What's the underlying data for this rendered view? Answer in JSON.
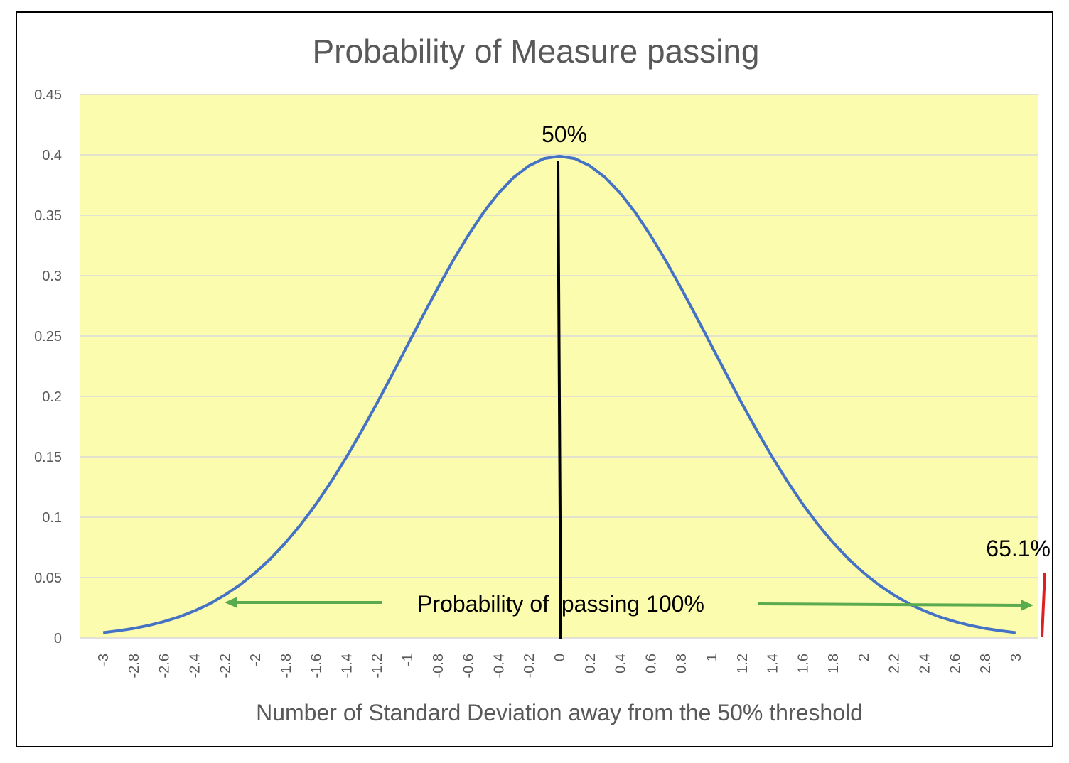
{
  "chart_data": {
    "type": "line",
    "title": "Probability of Measure passing",
    "xlabel": "Number of Standard Deviation away from the 50% threshold",
    "ylabel": "",
    "ylim": [
      0,
      0.45
    ],
    "y_ticks": [
      "0",
      "0.05",
      "0.1",
      "0.15",
      "0.2",
      "0.25",
      "0.3",
      "0.35",
      "0.4",
      "0.45"
    ],
    "x_ticks": [
      "-3",
      "-2.8",
      "-2.6",
      "-2.4",
      "-2.2",
      "-2",
      "-1.8",
      "-1.6",
      "-1.4",
      "-1.2",
      "-1",
      "-0.8",
      "-0.6",
      "-0.4",
      "-0.2",
      "0",
      "0.2",
      "0.4",
      "0.6",
      "0.8",
      "1",
      "1.2",
      "1.4",
      "1.6",
      "1.8",
      "2",
      "2.2",
      "2.4",
      "2.6",
      "2.8",
      "3"
    ],
    "grid": true,
    "legend": "none",
    "series": [
      {
        "x": [
          -3,
          -2.9,
          -2.8,
          -2.7,
          -2.6,
          -2.5,
          -2.4,
          -2.3,
          -2.2,
          -2.1,
          -2,
          -1.9,
          -1.8,
          -1.7,
          -1.6,
          -1.5,
          -1.4,
          -1.3,
          -1.2,
          -1.1,
          -1,
          -0.9,
          -0.8,
          -0.7,
          -0.6,
          -0.5,
          -0.4,
          -0.3,
          -0.2,
          -0.1,
          0,
          0.1,
          0.2,
          0.3,
          0.4,
          0.5,
          0.6,
          0.7,
          0.8,
          0.9,
          1,
          1.1,
          1.2,
          1.3,
          1.4,
          1.5,
          1.6,
          1.7,
          1.8,
          1.9,
          2,
          2.1,
          2.2,
          2.3,
          2.4,
          2.5,
          2.6,
          2.7,
          2.8,
          2.9,
          3
        ],
        "values": [
          0.0044,
          0.006,
          0.0079,
          0.0104,
          0.0136,
          0.0175,
          0.0224,
          0.0283,
          0.0355,
          0.044,
          0.054,
          0.0656,
          0.079,
          0.094,
          0.1109,
          0.1295,
          0.1497,
          0.1714,
          0.1942,
          0.2179,
          0.242,
          0.2661,
          0.2897,
          0.3123,
          0.3332,
          0.3521,
          0.3683,
          0.3814,
          0.391,
          0.397,
          0.3989,
          0.397,
          0.391,
          0.3814,
          0.3683,
          0.3521,
          0.3332,
          0.3123,
          0.2897,
          0.2661,
          0.242,
          0.2179,
          0.1942,
          0.1714,
          0.1497,
          0.1295,
          0.1109,
          0.094,
          0.079,
          0.0656,
          0.054,
          0.044,
          0.0355,
          0.0283,
          0.0224,
          0.0175,
          0.0136,
          0.0104,
          0.0079,
          0.006,
          0.0044
        ]
      }
    ],
    "annotations": {
      "center_label": "50%",
      "right_label": "65.1%",
      "passing_label": "Probability of  passing 100%"
    },
    "colors": {
      "plot_background": "#fcfcae",
      "curve": "#4472c4",
      "center_line": "#000000",
      "threshold_line": "#e02020",
      "arrow": "#5aab4e",
      "gridline": "#d9d9d9",
      "text": "#595959"
    }
  }
}
